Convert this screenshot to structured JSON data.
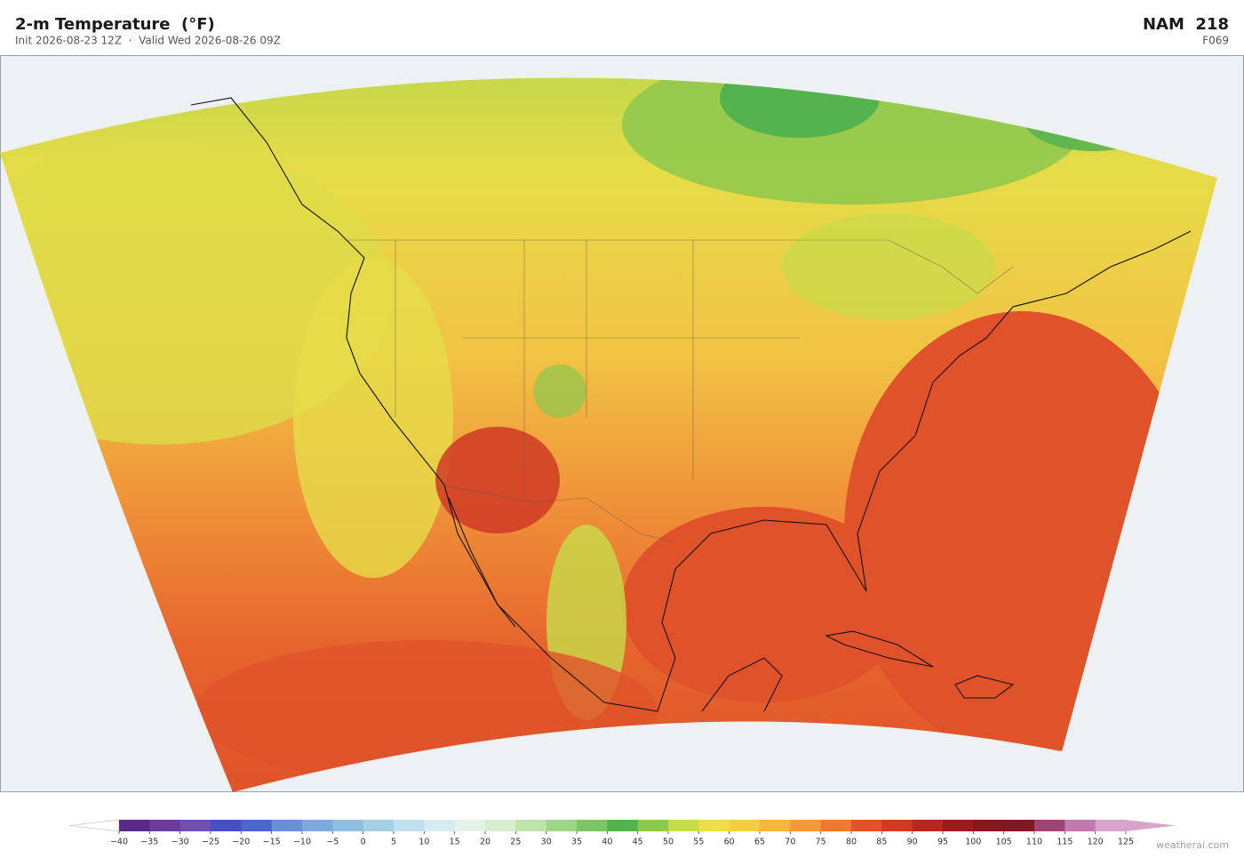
{
  "header": {
    "title": "2-m Temperature  (°F)",
    "subtitle": "Init 2026-08-23 12Z  ·  Valid Wed 2026-08-26 09Z",
    "model": "NAM  218",
    "forecast_hour": "F069"
  },
  "colorbar": {
    "ticks": [
      {
        "value": -40,
        "label": "−40"
      },
      {
        "value": -35,
        "label": "−35"
      },
      {
        "value": -30,
        "label": "−30"
      },
      {
        "value": -25,
        "label": "−25"
      },
      {
        "value": -20,
        "label": "−20"
      },
      {
        "value": -15,
        "label": "−15"
      },
      {
        "value": -10,
        "label": "−10"
      },
      {
        "value": -5,
        "label": "−5"
      },
      0,
      5,
      10,
      15,
      20,
      25,
      30,
      35,
      40,
      45,
      50,
      55,
      60,
      65,
      70,
      75,
      80,
      85,
      90,
      95,
      100,
      105,
      110,
      115,
      120,
      125
    ],
    "colors": [
      "#5b2a86",
      "#6a3d9a",
      "#6f4fb0",
      "#4a4fc0",
      "#4d66c9",
      "#6a8fd6",
      "#7fa8dc",
      "#90bde0",
      "#a6d0e6",
      "#bfe0ec",
      "#d6ecf0",
      "#e3f3ea",
      "#d6edd0",
      "#bfe3a8",
      "#9fd58a",
      "#7cc46a",
      "#55b34f",
      "#8cc84e",
      "#c7dc4a",
      "#ece04a",
      "#f3cc45",
      "#f4b63e",
      "#f19a3a",
      "#ec7a30",
      "#e0522a",
      "#cf3a24",
      "#b52820",
      "#981c1c",
      "#85181e",
      "#7a1a24",
      "#9e4474",
      "#c07ab0",
      "#d8a4cc"
    ],
    "under_color": "#ffffff",
    "over_color": "#d8a4cc"
  },
  "footer": {
    "watermark": "weatherai.com"
  }
}
